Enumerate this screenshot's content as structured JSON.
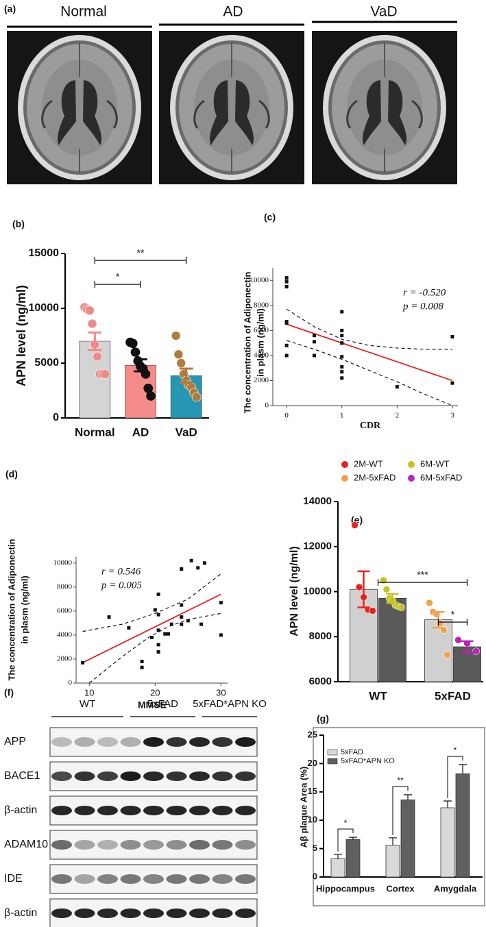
{
  "panel_a": {
    "label": "(a)",
    "columns": [
      "Normal",
      "AD",
      "VaD"
    ]
  },
  "chart_data": [
    {
      "type": "bar",
      "panel_label": "(b)",
      "y_label": "APN level  (ng/ml)",
      "categories": [
        "Normal",
        "AD",
        "VaD"
      ],
      "values": [
        7000,
        4800,
        3850
      ],
      "errors": [
        800,
        550,
        650
      ],
      "colors": [
        "#d4d4d4",
        "#f58b88",
        "#2596b4"
      ],
      "point_colors": [
        "#f08a8a",
        "#111111",
        "#b07c3c"
      ],
      "points": [
        [
          10100,
          9900,
          9800,
          8600,
          6700,
          5600,
          4000,
          4000,
          4000
        ],
        [
          6900,
          6800,
          6000,
          5200,
          4700,
          4500,
          4000,
          2700,
          2000
        ],
        [
          7500,
          5800,
          5000,
          4000,
          3400,
          3000,
          2800,
          2300,
          1900
        ]
      ],
      "ylim": [
        0,
        15000
      ],
      "yticks": [
        0,
        5000,
        10000,
        15000
      ],
      "significance": [
        {
          "between": [
            "Normal",
            "AD"
          ],
          "label": "*"
        },
        {
          "between": [
            "Normal",
            "VaD"
          ],
          "label": "**"
        }
      ]
    },
    {
      "type": "scatter",
      "panel_label": "(c)",
      "y_label": [
        "The concentration of Adiponectin",
        "in plasm (ng/ml)"
      ],
      "x_label": "CDR",
      "x": [
        0,
        0,
        0,
        0,
        0,
        0,
        0,
        0.5,
        0.5,
        0.5,
        1,
        1,
        1,
        1,
        1,
        1,
        1,
        1,
        2,
        3,
        3
      ],
      "values": [
        10200,
        9900,
        9500,
        6700,
        6600,
        4800,
        4000,
        5600,
        5100,
        4000,
        7500,
        6000,
        5600,
        5000,
        3900,
        3100,
        2700,
        2200,
        1500,
        5500,
        1800
      ],
      "color": "#111111",
      "fit": {
        "x": [
          0,
          3
        ],
        "values": [
          6500,
          2000
        ],
        "color": "#e8231f"
      },
      "ci": [
        {
          "x": [
            0,
            0.5,
            1,
            1.5,
            2,
            2.5,
            3
          ],
          "values": [
            7700,
            6300,
            5300,
            4800,
            4600,
            4500,
            4500
          ]
        },
        {
          "x": [
            0,
            0.5,
            1,
            1.5,
            2,
            2.5,
            3
          ],
          "values": [
            5200,
            4500,
            3700,
            2800,
            1900,
            900,
            0
          ]
        }
      ],
      "annotations": [
        "r = -0.520",
        "p = 0.008"
      ],
      "xlim": [
        -0.25,
        3.1
      ],
      "xticks": [
        0,
        1,
        2,
        3
      ],
      "ylim": [
        0,
        11000
      ],
      "yticks": [
        0,
        2000,
        4000,
        6000,
        8000,
        10000
      ]
    },
    {
      "type": "scatter",
      "panel_label": "(d)",
      "y_label": [
        "The concentration of Adiponectin",
        "in plasm (ng/ml)"
      ],
      "x_label": "MMSE",
      "x": [
        9,
        13,
        16,
        18,
        18,
        19.5,
        20,
        20.5,
        20.5,
        20.5,
        20.5,
        20.5,
        21.5,
        22,
        22.5,
        24,
        24,
        24,
        24,
        25,
        25.5,
        26.5,
        27,
        27.5,
        30,
        30
      ],
      "values": [
        1700,
        5500,
        4600,
        1300,
        1800,
        3800,
        6100,
        7400,
        5700,
        4400,
        3200,
        2600,
        4100,
        4100,
        4900,
        9500,
        6500,
        5500,
        4900,
        5200,
        10200,
        9600,
        4900,
        10000,
        6700,
        4000
      ],
      "color": "#111111",
      "fit": {
        "x": [
          9,
          30
        ],
        "values": [
          1700,
          7400
        ],
        "color": "#e8231f"
      },
      "ci": [
        {
          "x": [
            9,
            15,
            20,
            25,
            30
          ],
          "values": [
            4300,
            4900,
            5800,
            7000,
            9100
          ]
        },
        {
          "x": [
            10,
            15,
            19,
            22,
            25,
            30
          ],
          "values": [
            0,
            2200,
            3800,
            4700,
            5300,
            5800
          ]
        }
      ],
      "annotations": [
        "r = 0.546",
        "p = 0.005"
      ],
      "xlim": [
        8,
        31
      ],
      "xticks": [
        10,
        20,
        30
      ],
      "ylim": [
        0,
        10500
      ],
      "yticks": [
        0,
        2000,
        4000,
        6000,
        8000,
        10000
      ]
    },
    {
      "type": "bar",
      "panel_label": "(e)",
      "y_label": "APN level (ng/ml)",
      "categories": [
        "WT",
        "5xFAD"
      ],
      "series": [
        {
          "name": "2M-WT",
          "color": "#e8231f",
          "bar_color": "#d0d0d0",
          "values": [
            10100,
            null
          ],
          "errors": [
            800,
            null
          ],
          "points": [
            [
              12950,
              10200,
              9750,
              9200,
              9150
            ],
            null
          ]
        },
        {
          "name": "6M-WT",
          "color": "#c5c21f",
          "bar_color": "#5a5a5a",
          "values": [
            9700,
            null
          ],
          "errors": [
            200,
            null
          ],
          "points": [
            [
              10500,
              10100,
              9700,
              9600,
              9400,
              9350,
              9300
            ],
            null
          ]
        },
        {
          "name": "2M-5xFAD",
          "color": "#f5a04a",
          "bar_color": "#d0d0d0",
          "values": [
            null,
            8750
          ],
          "errors": [
            null,
            350
          ],
          "points": [
            null,
            [
              9500,
              9100,
              9000,
              8600,
              8300,
              7200
            ]
          ]
        },
        {
          "name": "6M-5xFAD",
          "color": "#c11fc1",
          "bar_color": "#5a5a5a",
          "values": [
            null,
            7550
          ],
          "errors": [
            null,
            250
          ],
          "points": [
            null,
            [
              7850,
              7700,
              7350
            ]
          ]
        }
      ],
      "ylim": [
        6000,
        14000
      ],
      "yticks": [
        6000,
        8000,
        10000,
        12000,
        14000
      ],
      "significance": [
        {
          "between": [
            "WT",
            "6M-5xFAD"
          ],
          "label": "***"
        },
        {
          "between": [
            "2M-5xFAD",
            "6M-5xFAD"
          ],
          "label": "*"
        }
      ]
    },
    {
      "type": "bar",
      "panel_label": "(g)",
      "y_label": "Aβ plaque Area (%)",
      "categories": [
        "Hippocampus",
        "Cortex",
        "Amygdala"
      ],
      "series": [
        {
          "name": "5xFAD",
          "color": "#d9d9d9",
          "values": [
            3.2,
            5.6,
            12.2
          ],
          "errors": [
            0.8,
            1.3,
            1.2
          ]
        },
        {
          "name": "5xFAD*APN KO",
          "color": "#606060",
          "values": [
            6.6,
            13.6,
            18.2
          ],
          "errors": [
            0.4,
            0.9,
            1.6
          ]
        }
      ],
      "ylim": [
        0,
        25
      ],
      "yticks": [
        0,
        5,
        10,
        15,
        20,
        25
      ],
      "significance": [
        {
          "category": "Hippocampus",
          "label": "*"
        },
        {
          "category": "Cortex",
          "label": "**"
        },
        {
          "category": "Amygdala",
          "label": "*"
        }
      ]
    }
  ],
  "panel_f": {
    "label": "(f)",
    "groups": [
      "WT",
      "5xFAD",
      "5xFAD*APN KO"
    ],
    "rows": [
      "APP",
      "BACE1",
      "β-actin",
      "ADAM10",
      "IDE",
      "β-actin"
    ]
  }
}
